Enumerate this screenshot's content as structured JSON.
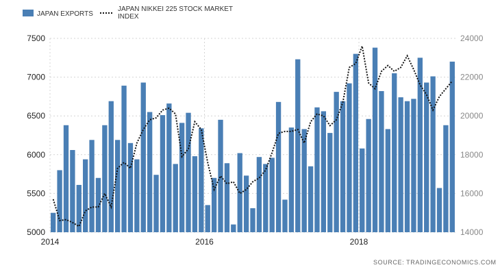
{
  "chart_data": {
    "type": "bar",
    "x_start": "2014-01",
    "x_tick_labels": [
      "2014",
      "2016",
      "2018"
    ],
    "y_left_ticks": [
      "5000",
      "5500",
      "6000",
      "6500",
      "7000",
      "7500"
    ],
    "y_left_range": [
      5000,
      7500
    ],
    "y_right_ticks": [
      "14000",
      "16000",
      "18000",
      "20000",
      "22000",
      "24000"
    ],
    "y_right_range": [
      14000,
      24000
    ],
    "grid": true,
    "legend_position": "top-left",
    "series": [
      {
        "name": "JAPAN EXPORTS",
        "kind": "bar",
        "axis": "left",
        "color": "#4a7fb5",
        "values": [
          5250,
          5800,
          6380,
          6060,
          5610,
          5940,
          6190,
          5700,
          6380,
          6690,
          6190,
          6890,
          6150,
          5940,
          6930,
          6550,
          5740,
          6510,
          6660,
          5880,
          6410,
          6540,
          5980,
          6340,
          5350,
          5700,
          6450,
          5890,
          5100,
          6020,
          5730,
          5310,
          5970,
          5880,
          5960,
          6680,
          5420,
          6350,
          7230,
          6330,
          5850,
          6610,
          6560,
          6280,
          6810,
          6690,
          6920,
          7300,
          6080,
          6460,
          7380,
          6820,
          6330,
          7050,
          6740,
          6690,
          6720,
          7250,
          6930,
          7010,
          5570,
          6380,
          7200
        ]
      },
      {
        "name": "JAPAN NIKKEI 225 STOCK MARKET INDEX",
        "kind": "line",
        "axis": "right",
        "color": "#111111",
        "values": [
          15700,
          14600,
          14650,
          14500,
          14300,
          15100,
          15300,
          15300,
          16000,
          15300,
          17300,
          17600,
          17300,
          18600,
          19300,
          19800,
          19900,
          20300,
          20400,
          20100,
          17900,
          18300,
          19700,
          19300,
          17600,
          16200,
          16900,
          16500,
          16600,
          16000,
          16200,
          16600,
          16800,
          17200,
          18100,
          19100,
          19200,
          19200,
          19300,
          18600,
          19700,
          20100,
          20000,
          19500,
          19800,
          20700,
          22500,
          22700,
          23600,
          21700,
          21400,
          22300,
          22600,
          22300,
          22500,
          23100,
          22400,
          21600,
          21100,
          20300,
          21000,
          21400,
          21800
        ]
      }
    ],
    "source": "SOURCE: TRADINGECONOMICS.COM"
  }
}
